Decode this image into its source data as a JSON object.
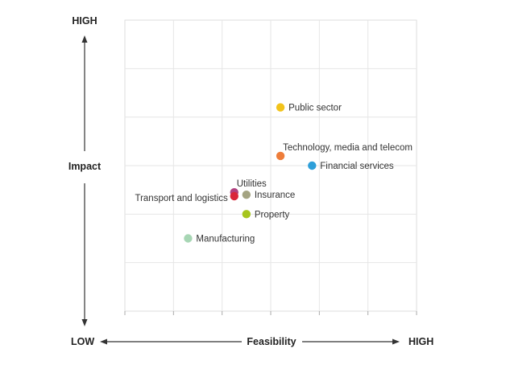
{
  "chart_data": {
    "type": "scatter",
    "title": "",
    "xlabel": "Feasibility",
    "ylabel": "Impact",
    "x_low_label": "LOW",
    "x_high_label": "HIGH",
    "y_high_label": "HIGH",
    "xlim": [
      0,
      6
    ],
    "ylim": [
      0,
      6
    ],
    "grid": true,
    "legend": "none",
    "points": [
      {
        "label": "Public sector",
        "x": 3.2,
        "y": 4.2,
        "color": "#f2c31a",
        "label_side": "right"
      },
      {
        "label": "Technology, media and telecom",
        "x": 3.2,
        "y": 3.2,
        "color": "#ee7d3a",
        "label_side": "right-above"
      },
      {
        "label": "Financial services",
        "x": 3.85,
        "y": 3.0,
        "color": "#2e9fd9",
        "label_side": "right"
      },
      {
        "label": "Utilities",
        "x": 2.25,
        "y": 2.45,
        "color": "#b0407f",
        "label_side": "right-above"
      },
      {
        "label": "Insurance",
        "x": 2.5,
        "y": 2.4,
        "color": "#a4a482",
        "label_side": "right"
      },
      {
        "label": "Transport and logistics",
        "x": 2.25,
        "y": 2.37,
        "color": "#d9253a",
        "label_side": "left"
      },
      {
        "label": "Property",
        "x": 2.5,
        "y": 2.0,
        "color": "#a6c51e",
        "label_side": "right"
      },
      {
        "label": "Manufacturing",
        "x": 1.3,
        "y": 1.5,
        "color": "#a7d6b4",
        "label_side": "right"
      }
    ]
  }
}
